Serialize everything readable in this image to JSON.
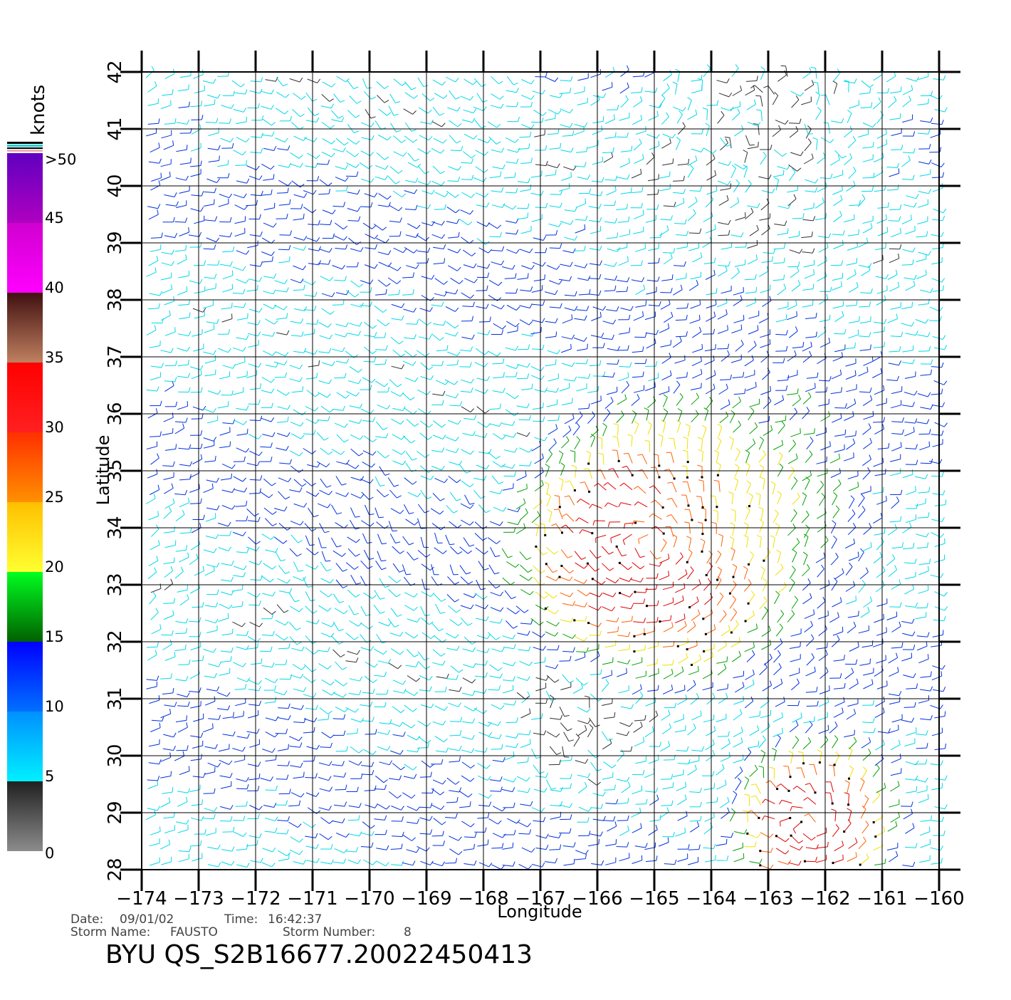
{
  "map": {
    "x_label": "Longitude",
    "y_label": "Latitude",
    "lon_ticks": [
      -174,
      -173,
      -172,
      -171,
      -170,
      -169,
      -168,
      -167,
      -166,
      -165,
      -164,
      -163,
      -162,
      -161,
      -160
    ],
    "lat_ticks": [
      28,
      29,
      30,
      31,
      32,
      33,
      34,
      35,
      36,
      37,
      38,
      39,
      40,
      41,
      42
    ],
    "lon_range": [
      -174,
      -160
    ],
    "lat_range": [
      28,
      42
    ],
    "grid": true,
    "tick_prefix": "−"
  },
  "legend": {
    "title": "knots",
    "labels": [
      ">50",
      "45",
      "40",
      "35",
      "30",
      "25",
      "20",
      "15",
      "10",
      "5",
      "0"
    ],
    "bands": [
      {
        "from": 0,
        "to": 5,
        "colors": [
          "#8c8c8c",
          "#202020"
        ]
      },
      {
        "from": 5,
        "to": 10,
        "colors": [
          "#00f0ff",
          "#0090ff"
        ]
      },
      {
        "from": 10,
        "to": 15,
        "colors": [
          "#0070ff",
          "#0000ff"
        ]
      },
      {
        "from": 15,
        "to": 20,
        "colors": [
          "#006000",
          "#00ff20"
        ]
      },
      {
        "from": 20,
        "to": 25,
        "colors": [
          "#ffff30",
          "#ffc000"
        ]
      },
      {
        "from": 25,
        "to": 30,
        "colors": [
          "#ff9000",
          "#ff3000"
        ]
      },
      {
        "from": 30,
        "to": 35,
        "colors": [
          "#ff2020",
          "#ff0000"
        ]
      },
      {
        "from": 35,
        "to": 40,
        "colors": [
          "#c08060",
          "#401010"
        ]
      },
      {
        "from": 40,
        "to": 45,
        "colors": [
          "#ff00ff",
          "#d000d0"
        ]
      },
      {
        "from": 45,
        "to": 50,
        "colors": [
          "#b000c0",
          "#6000c0"
        ]
      }
    ]
  },
  "footer": {
    "date_label": "Date:",
    "date": "09/01/02",
    "time_label": "Time:",
    "time": "16:42:37",
    "storm_name_label": "Storm Name:",
    "storm_name": "FAUSTO",
    "storm_number_label": "Storm Number:",
    "storm_number": "8",
    "product": "BYU QS_S2B16677.20022450413"
  },
  "wind_field": {
    "units": "knots",
    "speed_colors": [
      "#303030",
      "#00d8e8",
      "#0030e0",
      "#00a000",
      "#f0e000",
      "#ff6000",
      "#e00000",
      "#6a2010",
      "#a000d0"
    ],
    "regions": [
      {
        "lon": -165,
        "lat": 33.7,
        "radius": 3.0,
        "peak_speed": 30,
        "rotation": "cyclonic"
      },
      {
        "lon": -162.2,
        "lat": 28.8,
        "radius": 1.8,
        "peak_speed": 30,
        "rotation": "cyclonic"
      },
      {
        "lon": -163,
        "lat": 34.5,
        "radius": 2.5,
        "peak_speed": 22,
        "rotation": "none"
      },
      {
        "lon": -166.5,
        "lat": 30.5,
        "radius": 1.5,
        "peak_speed": 3,
        "rotation": "calm"
      },
      {
        "lon": -163,
        "lat": 41.5,
        "radius": 3.0,
        "peak_speed": 3,
        "rotation": "calm"
      }
    ]
  }
}
